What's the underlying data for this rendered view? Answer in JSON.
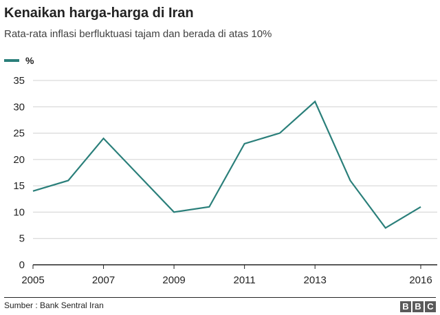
{
  "title": "Kenaikan harga-harga di Iran",
  "subtitle": "Rata-rata inflasi berfluktuasi tajam dan berada di atas 10%",
  "source": "Sumber : Bank Sentral Iran",
  "logo_letters": [
    "B",
    "B",
    "C"
  ],
  "colors": {
    "line": "#2a7f7a",
    "grid": "#d0d0d0",
    "axis": "#222222",
    "logo": "#5a5a5a"
  },
  "chart_data": {
    "type": "line",
    "title": "",
    "xlabel": "",
    "ylabel": "",
    "legend": "top-left",
    "grid": true,
    "xlim": [
      2005,
      2016
    ],
    "ylim": [
      0,
      35
    ],
    "x_ticks": [
      "2005",
      "2007",
      "2009",
      "2011",
      "2013",
      "2016"
    ],
    "y_ticks": [
      0,
      5,
      10,
      15,
      20,
      25,
      30,
      35
    ],
    "series": [
      {
        "name": "%",
        "x": [
          2005,
          2006,
          2007,
          2008,
          2009,
          2010,
          2011,
          2012,
          2013,
          2014,
          2015,
          2016
        ],
        "values": [
          14,
          16,
          24,
          17,
          10,
          11,
          23,
          25,
          31,
          16,
          7,
          11
        ]
      }
    ]
  }
}
